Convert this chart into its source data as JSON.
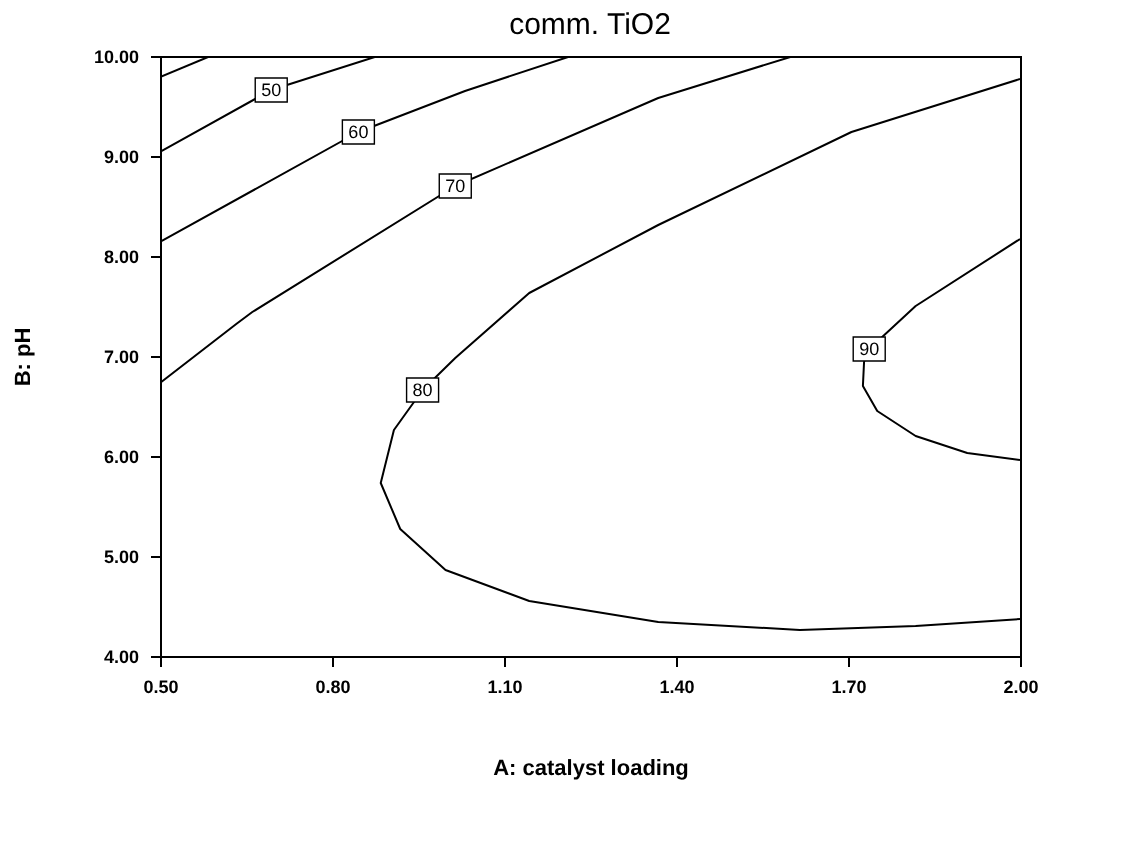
{
  "chart_data": {
    "type": "line",
    "title": "comm. TiO2",
    "xlabel": "A: catalyst loading",
    "ylabel": "B: pH",
    "xlim": [
      0.5,
      2.0
    ],
    "ylim": [
      4.0,
      10.0
    ],
    "xticks": [
      {
        "value": 0.5,
        "label": "0.50"
      },
      {
        "value": 0.8,
        "label": "0.80"
      },
      {
        "value": 1.1,
        "label": "1.10"
      },
      {
        "value": 1.4,
        "label": "1.40"
      },
      {
        "value": 1.7,
        "label": "1.70"
      },
      {
        "value": 2.0,
        "label": "2.00"
      }
    ],
    "yticks": [
      {
        "value": 4,
        "label": "4.00"
      },
      {
        "value": 5,
        "label": "5.00"
      },
      {
        "value": 6,
        "label": "6.00"
      },
      {
        "value": 7,
        "label": "7.00"
      },
      {
        "value": 8,
        "label": "8.00"
      },
      {
        "value": 9,
        "label": "9.00"
      },
      {
        "value": 10,
        "label": "10.00"
      }
    ],
    "grid": false,
    "line_style": "solid",
    "marker": "none",
    "series": [
      {
        "color": "#000000",
        "x": [
          0.5,
          0.588
        ],
        "values": [
          9.79,
          10.0
        ]
      },
      {
        "color": "#000000",
        "x": [
          0.5,
          0.694,
          0.88
        ],
        "values": [
          9.04,
          9.66,
          10.0
        ]
      },
      {
        "color": "#000000",
        "x": [
          0.5,
          0.846,
          1.032,
          1.217
        ],
        "values": [
          8.14,
          9.24,
          9.65,
          10.0
        ]
      },
      {
        "color": "#000000",
        "x": [
          0.5,
          0.633,
          0.661,
          1.015,
          1.369,
          1.605
        ],
        "values": [
          6.73,
          7.32,
          7.44,
          8.7,
          9.58,
          10.0
        ]
      },
      {
        "color": "#000000",
        "x": [
          2.0,
          1.706,
          1.369,
          1.144,
          1.015,
          0.958,
          0.908,
          0.885,
          0.919,
          0.998,
          1.144,
          1.369,
          1.616,
          1.818,
          2.0
        ],
        "values": [
          9.77,
          9.24,
          8.31,
          7.63,
          6.98,
          6.66,
          6.26,
          5.73,
          5.27,
          4.86,
          4.55,
          4.34,
          4.26,
          4.3,
          4.37
        ]
      },
      {
        "color": "#000000",
        "x": [
          2.0,
          1.818,
          1.737,
          1.728,
          1.726,
          1.751,
          1.818,
          1.908,
          2.0
        ],
        "values": [
          8.17,
          7.5,
          7.07,
          6.94,
          6.7,
          6.45,
          6.2,
          6.03,
          5.96
        ]
      }
    ],
    "annotations": [
      {
        "text": "50",
        "x": 0.694,
        "y": 9.66
      },
      {
        "text": "60",
        "x": 0.846,
        "y": 9.24
      },
      {
        "text": "70",
        "x": 1.015,
        "y": 8.7
      },
      {
        "text": "80",
        "x": 0.958,
        "y": 6.66
      },
      {
        "text": "90",
        "x": 1.737,
        "y": 7.07
      }
    ]
  }
}
